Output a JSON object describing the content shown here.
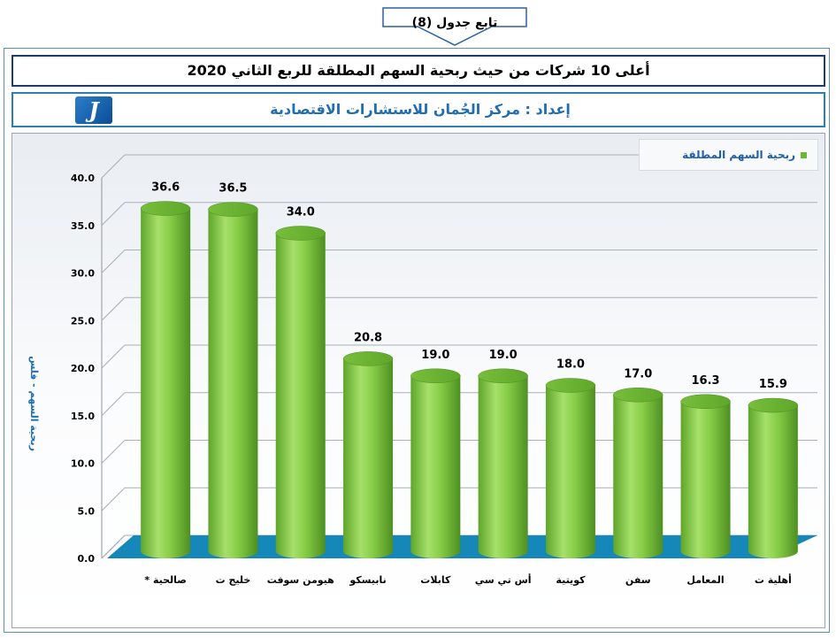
{
  "banner": {
    "text": "تابع جدول (8)"
  },
  "title": "أعلى 10 شركات من حيث ربحية السهم المطلقة للربع الثاني 2020",
  "source": "إعداد : مركز الجُمان للاستشارات الاقتصادية",
  "colors": {
    "bar": "#7cc63d",
    "floor": "#1587b8",
    "frame": "#1f3a6e",
    "accent": "#1f6db5"
  },
  "chart_data": {
    "type": "bar",
    "categories": [
      "صالحية *",
      "خليج ت",
      "هيومن سوفت",
      "نابيسكو",
      "كابلات",
      "أس تي سي",
      "كويتية",
      "سفن",
      "المعامل",
      "أهلية ت"
    ],
    "series": [
      {
        "name": "ربحية السهم المطلقة",
        "values": [
          36.6,
          36.5,
          34.0,
          20.8,
          19.0,
          19.0,
          18.0,
          17.0,
          16.3,
          15.9
        ]
      }
    ],
    "ylabel": "ربحية السهم - فلس",
    "ylim": [
      0,
      40
    ],
    "yticks": [
      "0.0",
      "5.0",
      "10.0",
      "15.0",
      "20.0",
      "25.0",
      "30.0",
      "35.0",
      "40.0"
    ],
    "data_labels": [
      "36.6",
      "36.5",
      "34.0",
      "20.8",
      "19.0",
      "19.0",
      "18.0",
      "17.0",
      "16.3",
      "15.9"
    ],
    "grid": true,
    "legend_position": "top-right"
  }
}
